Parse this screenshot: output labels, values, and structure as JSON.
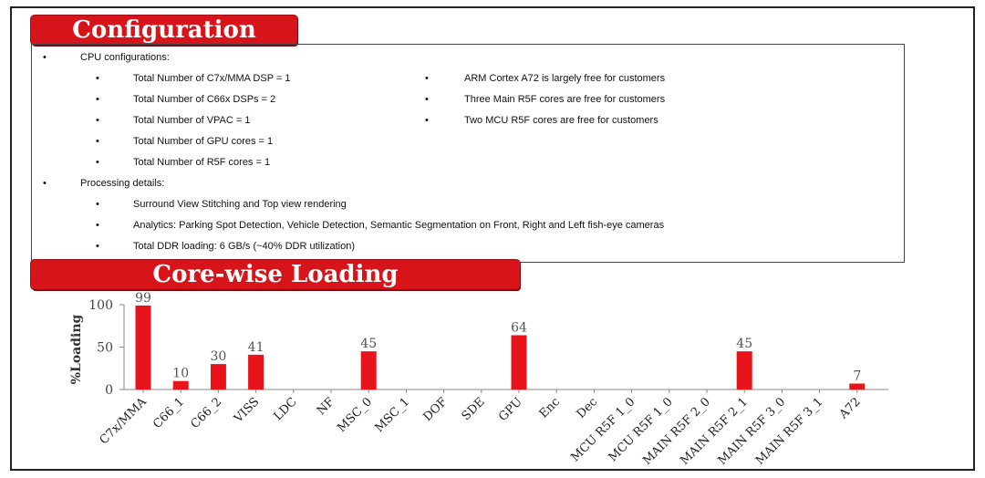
{
  "config": {
    "banner_title": "Configuration",
    "cpu_heading": "CPU configurations:",
    "cpu_items": [
      "Total Number of C7x/MMA DSP = 1",
      "Total Number of C66x DSPs = 2",
      "Total Number of VPAC = 1",
      "Total Number of GPU cores = 1",
      "Total Number of R5F cores = 1"
    ],
    "free_items": [
      "ARM Cortex A72 is largely free for customers",
      "Three Main R5F cores are free for customers",
      "Two MCU R5F cores are free for customers"
    ],
    "proc_heading": "Processing details:",
    "proc_items": [
      "Surround View Stitching and Top view rendering",
      "Analytics: Parking Spot Detection, Vehicle Detection, Semantic Segmentation on Front, Right and Left fish-eye cameras",
      "Total DDR loading: 6 GB/s (~40% DDR utilization)"
    ],
    "bullet_char": "•"
  },
  "loading": {
    "banner_title": "Core-wise Loading"
  },
  "chart_data": {
    "type": "bar",
    "title": "",
    "xlabel": "",
    "ylabel": "%Loading",
    "ylim": [
      0,
      100
    ],
    "yticks": [
      0,
      50,
      100
    ],
    "grid": false,
    "bar_color": "#e8141b",
    "categories": [
      "C7x/MMA",
      "C66_1",
      "C66_2",
      "VISS",
      "LDC",
      "NF",
      "MSC_0",
      "MSC_1",
      "DOF",
      "SDE",
      "GPU",
      "Enc",
      "Dec",
      "MCU R5F 1_0",
      "MCU R5F 1_0",
      "MAIN R5F 2_0",
      "MAIN R5F 2_1",
      "MAIN R5F 3_0",
      "MAIN R5F 3_1",
      "A72"
    ],
    "values": [
      99,
      10,
      30,
      41,
      null,
      null,
      45,
      null,
      null,
      null,
      64,
      null,
      null,
      null,
      null,
      null,
      45,
      null,
      null,
      7
    ],
    "value_labels": [
      "99",
      "10",
      "30",
      "41",
      "",
      "",
      "45",
      "",
      "",
      "",
      "64",
      "",
      "",
      "",
      "",
      "",
      "45",
      "",
      "",
      "7"
    ]
  }
}
